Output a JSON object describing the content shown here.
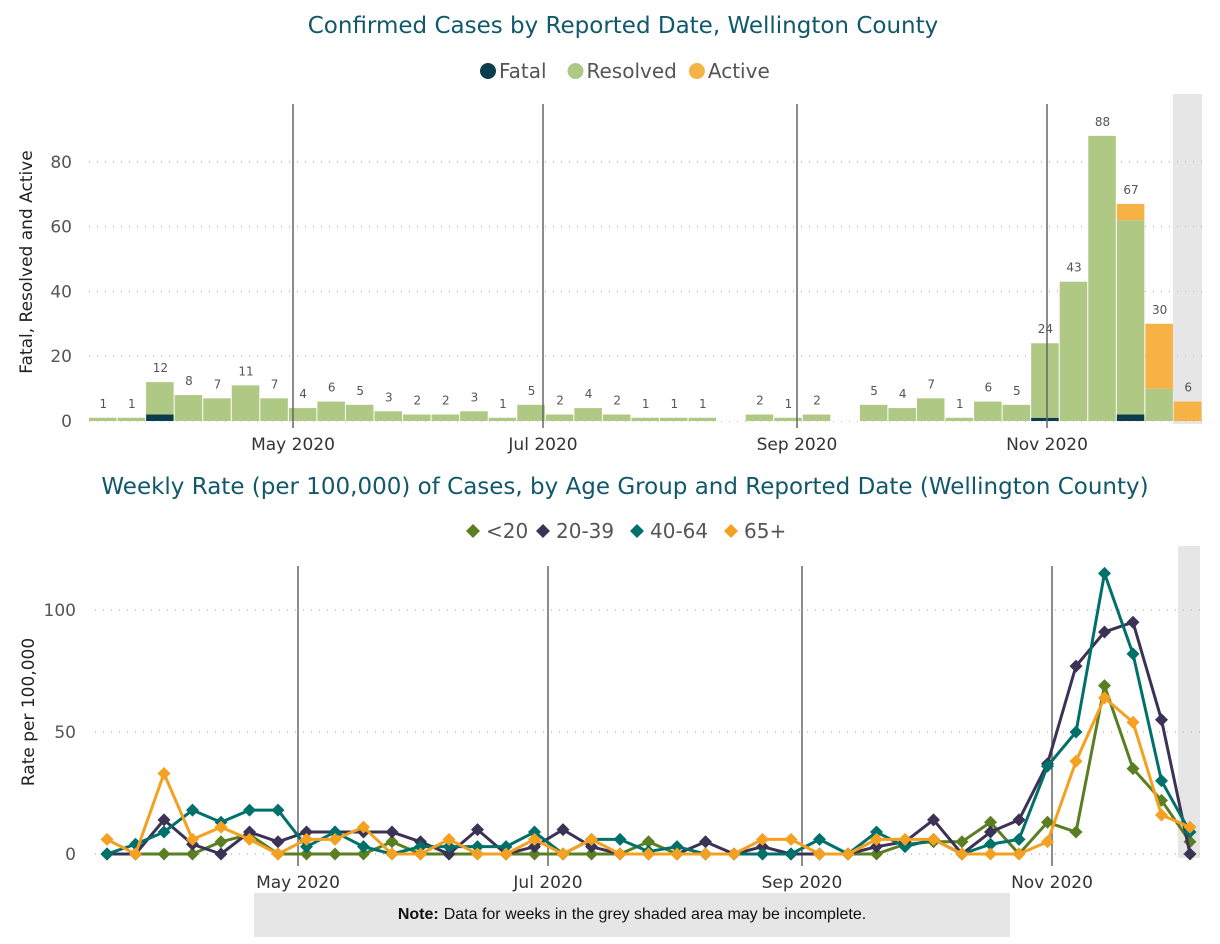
{
  "colors": {
    "title": "#11586a",
    "fatal": "#0b3d4c",
    "resolved": "#afc985",
    "active": "#f7b245",
    "lt20": "#5a7f23",
    "a20_39": "#3b3256",
    "a40_64": "#00706b",
    "a65p": "#f4a020",
    "shaded": "#e6e6e6"
  },
  "chart_data": [
    {
      "type": "bar",
      "stacked": true,
      "title": "Confirmed Cases by Reported Date, Wellington County",
      "ylabel": "Fatal, Resolved and Active",
      "xlabel": "",
      "ylim": [
        0,
        95
      ],
      "yticks": [
        "0",
        "20",
        "40",
        "60",
        "80"
      ],
      "xticks": [
        "May 2020",
        "Jul 2020",
        "Sep 2020",
        "Nov 2020"
      ],
      "grid": true,
      "legend_placement": "top-center",
      "legend": [
        "Fatal",
        "Resolved",
        "Active"
      ],
      "shaded_incomplete": "last week",
      "x": [
        "2020-03-15",
        "2020-03-22",
        "2020-03-29",
        "2020-04-05",
        "2020-04-12",
        "2020-04-19",
        "2020-04-26",
        "2020-05-03",
        "2020-05-10",
        "2020-05-17",
        "2020-05-24",
        "2020-05-31",
        "2020-06-07",
        "2020-06-14",
        "2020-06-21",
        "2020-06-28",
        "2020-07-05",
        "2020-07-12",
        "2020-07-19",
        "2020-07-26",
        "2020-08-02",
        "2020-08-09",
        "2020-08-16",
        "2020-08-23",
        "2020-08-30",
        "2020-09-06",
        "2020-09-13",
        "2020-09-20",
        "2020-09-27",
        "2020-10-04",
        "2020-10-11",
        "2020-10-18",
        "2020-10-25",
        "2020-11-01",
        "2020-11-08",
        "2020-11-15",
        "2020-11-22",
        "2020-11-29",
        "2020-12-06"
      ],
      "series": [
        {
          "name": "Fatal",
          "values": [
            0,
            0,
            2,
            0,
            0,
            0,
            0,
            0,
            0,
            0,
            0,
            0,
            0,
            0,
            0,
            0,
            0,
            0,
            0,
            0,
            0,
            0,
            0,
            0,
            0,
            0,
            0,
            0,
            0,
            0,
            0,
            0,
            0,
            1,
            0,
            0,
            2,
            0,
            0
          ]
        },
        {
          "name": "Resolved",
          "values": [
            1,
            1,
            10,
            8,
            7,
            11,
            7,
            4,
            6,
            5,
            3,
            2,
            2,
            3,
            1,
            5,
            2,
            4,
            2,
            1,
            1,
            1,
            0,
            2,
            1,
            2,
            0,
            5,
            4,
            7,
            1,
            6,
            5,
            23,
            43,
            88,
            60,
            10,
            0
          ]
        },
        {
          "name": "Active",
          "values": [
            0,
            0,
            0,
            0,
            0,
            0,
            0,
            0,
            0,
            0,
            0,
            0,
            0,
            0,
            0,
            0,
            0,
            0,
            0,
            0,
            0,
            0,
            0,
            0,
            0,
            0,
            0,
            0,
            0,
            0,
            0,
            0,
            0,
            0,
            0,
            0,
            5,
            20,
            6
          ]
        }
      ],
      "totals": [
        1,
        1,
        12,
        8,
        7,
        11,
        7,
        4,
        6,
        5,
        3,
        2,
        2,
        3,
        1,
        5,
        2,
        4,
        2,
        1,
        1,
        1,
        0,
        2,
        1,
        2,
        0,
        5,
        4,
        7,
        1,
        6,
        5,
        24,
        43,
        88,
        67,
        30,
        6
      ]
    },
    {
      "type": "line",
      "title": "Weekly Rate (per 100,000) of Cases, by Age Group and Reported Date (Wellington County)",
      "ylabel": "Rate per 100,000",
      "xlabel": "",
      "ylim": [
        0,
        120
      ],
      "yticks": [
        "0",
        "50",
        "100"
      ],
      "xticks": [
        "May 2020",
        "Jul 2020",
        "Sep 2020",
        "Nov 2020"
      ],
      "grid": true,
      "legend_placement": "top-center",
      "marker": "diamond",
      "shaded_incomplete": "last week",
      "x": [
        "2020-03-15",
        "2020-03-22",
        "2020-03-29",
        "2020-04-05",
        "2020-04-12",
        "2020-04-19",
        "2020-04-26",
        "2020-05-03",
        "2020-05-10",
        "2020-05-17",
        "2020-05-24",
        "2020-05-31",
        "2020-06-07",
        "2020-06-14",
        "2020-06-21",
        "2020-06-28",
        "2020-07-05",
        "2020-07-12",
        "2020-07-19",
        "2020-07-26",
        "2020-08-02",
        "2020-08-09",
        "2020-08-16",
        "2020-08-23",
        "2020-08-30",
        "2020-09-06",
        "2020-09-13",
        "2020-09-20",
        "2020-09-27",
        "2020-10-04",
        "2020-10-11",
        "2020-10-18",
        "2020-10-25",
        "2020-11-01",
        "2020-11-08",
        "2020-11-15",
        "2020-11-22",
        "2020-11-29",
        "2020-12-06"
      ],
      "series": [
        {
          "name": "<20",
          "values": [
            0,
            0,
            0,
            0,
            5,
            8,
            0,
            0,
            0,
            0,
            5,
            0,
            0,
            0,
            0,
            0,
            0,
            0,
            0,
            5,
            0,
            0,
            0,
            0,
            0,
            0,
            0,
            0,
            4,
            5,
            5,
            13,
            0,
            13,
            9,
            69,
            35,
            22,
            5
          ]
        },
        {
          "name": "20-39",
          "values": [
            0,
            0,
            14,
            4,
            0,
            9,
            5,
            9,
            9,
            9,
            9,
            5,
            0,
            10,
            0,
            3,
            10,
            3,
            0,
            0,
            0,
            5,
            0,
            3,
            0,
            0,
            0,
            3,
            5,
            14,
            0,
            9,
            14,
            37,
            77,
            91,
            95,
            55,
            0
          ]
        },
        {
          "name": "40-64",
          "values": [
            0,
            4,
            9,
            18,
            13,
            18,
            18,
            3,
            9,
            3,
            0,
            3,
            3,
            3,
            3,
            9,
            0,
            6,
            6,
            1,
            3,
            0,
            0,
            0,
            0,
            6,
            0,
            9,
            3,
            6,
            0,
            4,
            6,
            36,
            50,
            115,
            82,
            30,
            9
          ]
        },
        {
          "name": "65+",
          "values": [
            6,
            0,
            33,
            6,
            11,
            6,
            0,
            6,
            6,
            11,
            0,
            0,
            6,
            0,
            0,
            6,
            0,
            6,
            0,
            0,
            0,
            0,
            0,
            6,
            6,
            0,
            0,
            6,
            6,
            6,
            0,
            0,
            0,
            5,
            38,
            64,
            54,
            16,
            11
          ]
        }
      ]
    }
  ],
  "note": {
    "label": "Note:",
    "text": "Data for weeks in the grey shaded area may be incomplete."
  }
}
